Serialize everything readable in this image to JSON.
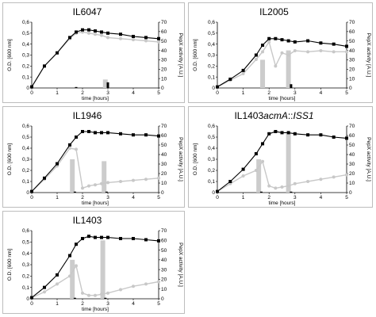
{
  "colors": {
    "od": "#000000",
    "pepx": "#c8c8c8",
    "bar_gray": "#cccccc",
    "bar_black": "#000000",
    "frame": "#bdbdbd"
  },
  "chart_data": [
    {
      "type": "line",
      "title": "IL6047",
      "xlabel": "time [hours]",
      "ylabel": "O.D. [600 nm]",
      "y2label": "PepX activity [A.U.]",
      "xlim": [
        0,
        5
      ],
      "ylim": [
        0,
        0.6
      ],
      "y2lim": [
        0,
        70
      ],
      "xticks": [
        "0",
        "1",
        "2",
        "3",
        "4",
        "5"
      ],
      "yticks": [
        "0",
        "0,1",
        "0,2",
        "0,3",
        "0,4",
        "0,5",
        "0,6"
      ],
      "y2ticks": [
        "0",
        "10",
        "20",
        "30",
        "40",
        "50",
        "60",
        "70"
      ],
      "series": [
        {
          "axis": "left",
          "x": [
            0,
            0.5,
            1,
            1.5,
            1.75,
            2,
            2.25,
            2.5,
            2.75,
            3,
            3.5,
            4,
            4.5,
            5
          ],
          "y": [
            0.01,
            0.2,
            0.32,
            0.46,
            0.51,
            0.53,
            0.53,
            0.52,
            0.51,
            0.5,
            0.49,
            0.47,
            0.46,
            0.45
          ]
        },
        {
          "axis": "left",
          "x": [
            0,
            0.5,
            1,
            1.5,
            1.75,
            2,
            2.25,
            2.5,
            2.75,
            3,
            3.5,
            4,
            4.5,
            5
          ],
          "y": [
            0.01,
            0.2,
            0.32,
            0.45,
            0.5,
            0.51,
            0.5,
            0.49,
            0.48,
            0.46,
            0.45,
            0.44,
            0.43,
            0.42
          ]
        }
      ],
      "bars": [
        {
          "x": 1.75,
          "value": 1,
          "color": "black"
        },
        {
          "x": 2.9,
          "value": 9,
          "color": "gray"
        },
        {
          "x": 3.0,
          "value": 6,
          "color": "black"
        }
      ]
    },
    {
      "type": "line",
      "title": "IL2005",
      "xlabel": "time [hours]",
      "ylabel": "O.D. [600 nm]",
      "y2label": "PepX activity [A.U.]",
      "xlim": [
        0,
        5
      ],
      "ylim": [
        0,
        0.6
      ],
      "y2lim": [
        0,
        70
      ],
      "xticks": [
        "0",
        "1",
        "2",
        "3",
        "4",
        "5"
      ],
      "yticks": [
        "0",
        "0,1",
        "0,2",
        "0,3",
        "0,4",
        "0,5",
        "0,6"
      ],
      "y2ticks": [
        "0",
        "10",
        "20",
        "30",
        "40",
        "50",
        "60",
        "70"
      ],
      "series": [
        {
          "axis": "left",
          "x": [
            0,
            0.5,
            1,
            1.5,
            1.75,
            2,
            2.25,
            2.5,
            2.75,
            3,
            3.5,
            4,
            4.5,
            5
          ],
          "y": [
            0.01,
            0.08,
            0.16,
            0.3,
            0.39,
            0.45,
            0.45,
            0.44,
            0.43,
            0.42,
            0.43,
            0.41,
            0.4,
            0.38
          ]
        },
        {
          "axis": "left",
          "x": [
            0,
            0.5,
            1,
            1.5,
            1.75,
            2,
            2.25,
            2.5,
            2.75,
            3,
            3.5,
            4,
            4.5,
            5
          ],
          "y": [
            0.01,
            0.07,
            0.13,
            0.26,
            0.33,
            0.42,
            0.2,
            0.32,
            0.3,
            0.34,
            0.33,
            0.34,
            0.33,
            0.33
          ]
        }
      ],
      "bars": [
        {
          "x": 1.75,
          "value": 30,
          "color": "gray"
        },
        {
          "x": 2.75,
          "value": 40,
          "color": "gray"
        },
        {
          "x": 2.85,
          "value": 4,
          "color": "black"
        }
      ]
    },
    {
      "type": "line",
      "title": "IL1946",
      "xlabel": "time [hours]",
      "ylabel": "O.D. [600 nm]",
      "y2label": "PepX activity [A.U.]",
      "xlim": [
        0,
        5
      ],
      "ylim": [
        0,
        0.6
      ],
      "y2lim": [
        0,
        70
      ],
      "xticks": [
        "0",
        "1",
        "2",
        "3",
        "4",
        "5"
      ],
      "yticks": [
        "0",
        "0,1",
        "0,2",
        "0,3",
        "0,4",
        "0,5",
        "0,6"
      ],
      "y2ticks": [
        "0",
        "10",
        "20",
        "30",
        "40",
        "50",
        "60",
        "70"
      ],
      "series": [
        {
          "axis": "left",
          "x": [
            0,
            0.5,
            1,
            1.5,
            1.75,
            2,
            2.25,
            2.5,
            2.75,
            3,
            3.5,
            4,
            4.5,
            5
          ],
          "y": [
            0.01,
            0.13,
            0.26,
            0.43,
            0.5,
            0.55,
            0.55,
            0.54,
            0.54,
            0.54,
            0.53,
            0.52,
            0.52,
            0.51
          ]
        },
        {
          "axis": "left",
          "x": [
            0,
            0.5,
            1,
            1.5,
            1.75,
            2,
            2.25,
            2.5,
            2.75,
            3,
            3.5,
            4,
            4.5,
            5
          ],
          "y": [
            0.01,
            0.12,
            0.24,
            0.4,
            0.39,
            0.04,
            0.06,
            0.07,
            0.08,
            0.09,
            0.1,
            0.11,
            0.12,
            0.13
          ]
        }
      ],
      "bars": [
        {
          "x": 1.6,
          "value": 35,
          "color": "gray"
        },
        {
          "x": 1.7,
          "value": 1,
          "color": "black"
        },
        {
          "x": 2.85,
          "value": 33,
          "color": "gray"
        },
        {
          "x": 2.95,
          "value": 1,
          "color": "black"
        }
      ]
    },
    {
      "type": "line",
      "title": "IL1403acmA::ISS1",
      "xlabel": "time [hours]",
      "ylabel": "O.D. [600 nm]",
      "y2label": "PepX activity [A.U.]",
      "xlim": [
        0,
        5
      ],
      "ylim": [
        0,
        0.6
      ],
      "y2lim": [
        0,
        70
      ],
      "xticks": [
        "0",
        "1",
        "2",
        "3",
        "4",
        "5"
      ],
      "yticks": [
        "0",
        "0,1",
        "0,2",
        "0,3",
        "0,4",
        "0,5",
        "0,6"
      ],
      "y2ticks": [
        "0",
        "10",
        "20",
        "30",
        "40",
        "50",
        "60",
        "70"
      ],
      "series": [
        {
          "axis": "left",
          "x": [
            0,
            0.5,
            1,
            1.5,
            1.75,
            2,
            2.25,
            2.5,
            2.75,
            3,
            3.5,
            4,
            4.5,
            5
          ],
          "y": [
            0.01,
            0.1,
            0.21,
            0.35,
            0.44,
            0.53,
            0.55,
            0.54,
            0.54,
            0.53,
            0.52,
            0.52,
            0.5,
            0.49
          ]
        },
        {
          "axis": "left",
          "x": [
            0,
            0.5,
            1,
            1.5,
            1.75,
            2,
            2.25,
            2.5,
            2.75,
            3,
            3.5,
            4,
            4.5,
            5
          ],
          "y": [
            0.01,
            0.08,
            0.15,
            0.2,
            0.28,
            0.06,
            0.04,
            0.05,
            0.06,
            0.08,
            0.1,
            0.12,
            0.14,
            0.16
          ]
        }
      ],
      "bars": [
        {
          "x": 1.6,
          "value": 35,
          "color": "gray"
        },
        {
          "x": 1.7,
          "value": 1,
          "color": "black"
        },
        {
          "x": 2.75,
          "value": 62,
          "color": "gray"
        },
        {
          "x": 2.85,
          "value": 1,
          "color": "black"
        }
      ]
    },
    {
      "type": "line",
      "title": "IL1403",
      "xlabel": "time [hours]",
      "ylabel": "O.D. [600 nm]",
      "y2label": "PepX activity [A.U.]",
      "xlim": [
        0,
        5
      ],
      "ylim": [
        0,
        0.6
      ],
      "y2lim": [
        0,
        70
      ],
      "xticks": [
        "0",
        "1",
        "2",
        "3",
        "4",
        "5"
      ],
      "yticks": [
        "0",
        "0,1",
        "0,2",
        "0,3",
        "0,4",
        "0,5",
        "0,6"
      ],
      "y2ticks": [
        "0",
        "10",
        "20",
        "30",
        "40",
        "50",
        "60",
        "70"
      ],
      "series": [
        {
          "axis": "left",
          "x": [
            0,
            0.5,
            1,
            1.5,
            1.75,
            2,
            2.25,
            2.5,
            2.75,
            3,
            3.5,
            4,
            4.5,
            5
          ],
          "y": [
            0.01,
            0.1,
            0.21,
            0.38,
            0.48,
            0.53,
            0.55,
            0.54,
            0.54,
            0.54,
            0.53,
            0.53,
            0.52,
            0.51
          ]
        },
        {
          "axis": "left",
          "x": [
            0,
            0.5,
            1,
            1.5,
            1.75,
            2,
            2.25,
            2.5,
            2.75,
            3,
            3.5,
            4,
            4.5,
            5
          ],
          "y": [
            0.01,
            0.06,
            0.13,
            0.2,
            0.29,
            0.05,
            0.03,
            0.03,
            0.04,
            0.05,
            0.08,
            0.11,
            0.13,
            0.15
          ]
        }
      ],
      "bars": [
        {
          "x": 1.6,
          "value": 40,
          "color": "gray"
        },
        {
          "x": 1.7,
          "value": 1,
          "color": "black"
        },
        {
          "x": 2.8,
          "value": 60,
          "color": "gray"
        },
        {
          "x": 2.9,
          "value": 1,
          "color": "black"
        }
      ]
    }
  ]
}
